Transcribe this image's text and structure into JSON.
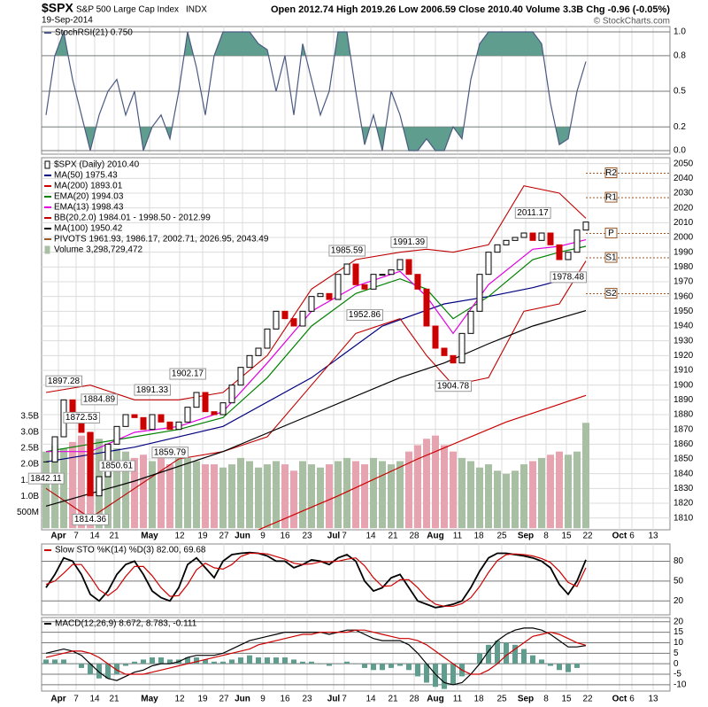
{
  "header": {
    "symbol": "$SPX",
    "name": "S&P 500 Large Cap Index",
    "exchange": "INDX",
    "date": "19-Sep-2014",
    "quote": "Open 2012.74 High 2019.26 Low 2006.59 Close 2010.40 Volume 3.3B Chg -0.96 (-0.05%)",
    "source": "© StockCharts.com"
  },
  "x_axis": {
    "xlim": [
      -0.5,
      70.5
    ],
    "xticks": [
      {
        "value": 1.4,
        "label": "Apr"
      },
      {
        "value": 3.4,
        "label": "7"
      },
      {
        "value": 5.5,
        "label": "14"
      },
      {
        "value": 7.7,
        "label": "21"
      },
      {
        "value": 11.7,
        "label": "May"
      },
      {
        "value": 15.1,
        "label": "12"
      },
      {
        "value": 17.7,
        "label": "19"
      },
      {
        "value": 20.1,
        "label": "27"
      },
      {
        "value": 22.2,
        "label": "Jun"
      },
      {
        "value": 24.5,
        "label": "9"
      },
      {
        "value": 27.0,
        "label": "16"
      },
      {
        "value": 29.5,
        "label": "23"
      },
      {
        "value": 32.5,
        "label": "Jul"
      },
      {
        "value": 33.7,
        "label": "7"
      },
      {
        "value": 36.7,
        "label": "14"
      },
      {
        "value": 39.2,
        "label": "21"
      },
      {
        "value": 41.6,
        "label": "28"
      },
      {
        "value": 44.0,
        "label": "Aug"
      },
      {
        "value": 46.5,
        "label": "11"
      },
      {
        "value": 48.9,
        "label": "18"
      },
      {
        "value": 51.5,
        "label": "25"
      },
      {
        "value": 54.2,
        "label": "Sep"
      },
      {
        "value": 56.5,
        "label": "8"
      },
      {
        "value": 58.8,
        "label": "15"
      },
      {
        "value": 61.2,
        "label": "22"
      },
      {
        "value": 64.8,
        "label": "Oct"
      },
      {
        "value": 66.2,
        "label": "6"
      },
      {
        "value": 68.6,
        "label": "13"
      }
    ]
  },
  "chart_data": [
    {
      "type": "line",
      "title": "StochRSI(21) 0.750",
      "grid": true,
      "ylim": [
        -0.03,
        1.045
      ],
      "yticks": [
        {
          "value": 0,
          "label": "0.0"
        },
        {
          "value": 0.2,
          "label": "0.2"
        },
        {
          "value": 0.5,
          "label": "0.5"
        },
        {
          "value": 0.8,
          "label": "0.8"
        },
        {
          "value": 1,
          "label": "1.0"
        }
      ],
      "shade": [
        0.2,
        0.8
      ],
      "series": [
        {
          "color": "#4b5a82",
          "fill": "#5f9e8f",
          "values": [
            0.3,
            0.8,
            1,
            0.6,
            0.3,
            0,
            0.3,
            0.5,
            0.6,
            0.3,
            0.5,
            0,
            0.2,
            0.3,
            0.1,
            0.5,
            1,
            0.7,
            0.3,
            0.8,
            1,
            1,
            1,
            1,
            0.9,
            0.85,
            0.5,
            0.8,
            0.3,
            0.9,
            0.6,
            0.3,
            0.5,
            1,
            1,
            0.5,
            0.05,
            0.3,
            0,
            0.5,
            0.3,
            0,
            0,
            0.1,
            0,
            0,
            0.2,
            0.1,
            0.6,
            0.9,
            1,
            1,
            1,
            1,
            1,
            1,
            0.9,
            0.4,
            0.05,
            0.1,
            0.5,
            0.75
          ]
        }
      ]
    },
    {
      "type": "candlestick",
      "grid": true,
      "ylim": [
        1802,
        2054
      ],
      "yticks": [
        1810,
        1820,
        1830,
        1840,
        1850,
        1860,
        1870,
        1880,
        1890,
        1900,
        1910,
        1920,
        1930,
        1940,
        1950,
        1960,
        1970,
        1980,
        1990,
        2000,
        2010,
        2020,
        2030,
        2040,
        2050
      ],
      "y2lim": [
        -0.05,
        11.6
      ],
      "y2ticks": [
        {
          "value": 0.5,
          "label": "500M"
        },
        {
          "value": 1,
          "label": "1.0B"
        },
        {
          "value": 1.5,
          "label": "1.5B"
        },
        {
          "value": 2,
          "label": "2.0B"
        },
        {
          "value": 2.5,
          "label": "2.5B"
        },
        {
          "value": 3,
          "label": "3.0B"
        },
        {
          "value": 3.5,
          "label": "3.5B"
        }
      ],
      "series": [
        {
          "name": "$SPX (Daily) 2010.40",
          "color": "#000000",
          "down_color": "#cc0000",
          "values": [
            1848,
            1865,
            1890,
            1880,
            1868,
            1825,
            1838,
            1860,
            1872,
            1880,
            1878,
            1870,
            1880,
            1875,
            1870,
            1875,
            1885,
            1895,
            1882,
            1880,
            1888,
            1900,
            1912,
            1920,
            1925,
            1938,
            1950,
            1945,
            1940,
            1950,
            1960,
            1962,
            1958,
            1975,
            1982,
            1968,
            1965,
            1975,
            1975,
            1978,
            1985,
            1975,
            1965,
            1940,
            1925,
            1920,
            1915,
            1935,
            1950,
            1975,
            1990,
            1995,
            1998,
            2000,
            2003,
            1998,
            2003,
            1995,
            1985,
            1990,
            2005,
            2010.4
          ]
        },
        {
          "type": "line",
          "name": "MA(50) 1975.43",
          "color": "#000080",
          "x": [
            0,
            10,
            20,
            30,
            38,
            45,
            50,
            55,
            61
          ],
          "values": [
            1848,
            1858,
            1872,
            1905,
            1940,
            1955,
            1960,
            1966,
            1975.43
          ]
        },
        {
          "type": "line",
          "name": "MA(200) 1893.01",
          "color": "#cc0000",
          "x": [
            24,
            33,
            42,
            52,
            61
          ],
          "values": [
            1802,
            1825,
            1850,
            1875,
            1893.01
          ]
        },
        {
          "type": "line",
          "name": "EMA(20) 1994.03",
          "color": "#008000",
          "x": [
            0,
            5,
            10,
            15,
            20,
            25,
            30,
            35,
            40,
            43,
            46,
            50,
            55,
            58,
            61
          ],
          "values": [
            1855,
            1860,
            1865,
            1870,
            1878,
            1905,
            1940,
            1962,
            1972,
            1965,
            1945,
            1960,
            1985,
            1990,
            1994.03
          ]
        },
        {
          "type": "line",
          "name": "EMA(13) 1998.43",
          "color": "#e000e0",
          "x": [
            0,
            5,
            10,
            15,
            20,
            25,
            30,
            35,
            40,
            43,
            46,
            50,
            55,
            58,
            61
          ],
          "values": [
            1855,
            1855,
            1868,
            1872,
            1882,
            1915,
            1950,
            1967,
            1977,
            1960,
            1935,
            1968,
            1992,
            1994,
            1998.43
          ]
        },
        {
          "type": "band",
          "name": "BB(20,2.0) 1984.01 - 1998.50 - 2012.99",
          "color": "#c00000",
          "x": [
            0,
            5,
            10,
            15,
            20,
            25,
            30,
            35,
            40,
            43,
            46,
            50,
            54,
            58,
            61
          ],
          "values": [
            1895,
            1900,
            1890,
            1890,
            1895,
            1920,
            1965,
            1985,
            1990,
            1992,
            1990,
            1995,
            2035,
            2030,
            2012.99
          ],
          "lower": [
            1830,
            1810,
            1830,
            1850,
            1855,
            1865,
            1900,
            1935,
            1945,
            1920,
            1900,
            1905,
            1950,
            1955,
            1984.01
          ]
        },
        {
          "type": "line",
          "name": "MA(100) 1950.42",
          "color": "#000000",
          "x": [
            0,
            10,
            20,
            30,
            40,
            45,
            50,
            55,
            61
          ],
          "values": [
            1818,
            1835,
            1855,
            1880,
            1905,
            1915,
            1928,
            1940,
            1950.42
          ]
        },
        {
          "type": "pivot",
          "name": "PIVOTS 1961.93, 1986.17, 2002.71, 2026.95, 2043.49",
          "color": "#9b5a2a",
          "categories": [
            "S2",
            "S1",
            "P",
            "R1",
            "R2"
          ],
          "values": [
            1961.93,
            1986.17,
            2002.71,
            2026.95,
            2043.49
          ]
        },
        {
          "type": "bar",
          "axis": "y2",
          "name": "Volume 3,298,729,472",
          "color": "#a9bfa3",
          "down_color": "#e6a3b0",
          "values": [
            2.4,
            2.6,
            2.5,
            2.7,
            2.9,
            3.0,
            2.8,
            2.6,
            2.5,
            2.4,
            2.2,
            2.3,
            2.1,
            2.2,
            2.0,
            2.3,
            2.2,
            2.1,
            2.0,
            2.0,
            1.9,
            2.0,
            2.2,
            2.1,
            1.9,
            2.0,
            2.1,
            2.0,
            1.8,
            2.1,
            2.0,
            1.9,
            2.0,
            2.1,
            2.2,
            2.1,
            2.0,
            2.2,
            2.1,
            2.0,
            2.1,
            2.4,
            2.6,
            2.8,
            2.9,
            2.6,
            2.4,
            2.2,
            2.1,
            1.9,
            2.0,
            1.8,
            1.7,
            1.8,
            2.0,
            2.1,
            2.2,
            2.3,
            2.4,
            2.3,
            2.4,
            3.3
          ]
        }
      ],
      "annotations": [
        {
          "x": 2,
          "value": 1897.28
        },
        {
          "x": 4,
          "value": 1872.53
        },
        {
          "x": 6,
          "value": 1884.89
        },
        {
          "x": 0,
          "value": 1842.11
        },
        {
          "x": 8,
          "value": 1850.61
        },
        {
          "x": 5,
          "value": 1814.36
        },
        {
          "x": 12,
          "value": 1891.33
        },
        {
          "x": 14,
          "value": 1859.79
        },
        {
          "x": 16,
          "value": 1902.17
        },
        {
          "x": 34,
          "value": 1985.59
        },
        {
          "x": 36,
          "value": 1952.86
        },
        {
          "x": 41,
          "value": 1991.39
        },
        {
          "x": 46,
          "value": 1904.78
        },
        {
          "x": 55,
          "value": 2011.17
        },
        {
          "x": 59,
          "value": 1978.48
        }
      ]
    },
    {
      "type": "line",
      "title": "Slow STO %K(14) %D(3) 82.00, 69.68",
      "grid": true,
      "ylim": [
        -1,
        106
      ],
      "yticks": [
        20,
        50,
        80
      ],
      "series": [
        {
          "color": "#000000",
          "values": [
            40,
            60,
            85,
            80,
            60,
            30,
            20,
            35,
            60,
            75,
            80,
            60,
            35,
            25,
            20,
            40,
            75,
            85,
            70,
            55,
            80,
            90,
            92,
            93,
            92,
            88,
            80,
            80,
            70,
            75,
            82,
            80,
            75,
            85,
            90,
            80,
            50,
            35,
            40,
            55,
            60,
            40,
            20,
            15,
            10,
            12,
            15,
            20,
            40,
            65,
            85,
            92,
            92,
            90,
            88,
            85,
            80,
            70,
            45,
            30,
            50,
            82
          ]
        },
        {
          "color": "#cc0000",
          "values": [
            45,
            50,
            62,
            75,
            75,
            57,
            37,
            28,
            38,
            57,
            72,
            72,
            58,
            40,
            27,
            28,
            45,
            67,
            77,
            70,
            68,
            75,
            87,
            92,
            92,
            91,
            87,
            83,
            77,
            75,
            76,
            79,
            79,
            80,
            83,
            85,
            73,
            55,
            42,
            43,
            52,
            52,
            40,
            25,
            15,
            12,
            12,
            16,
            25,
            42,
            63,
            81,
            90,
            91,
            90,
            88,
            84,
            78,
            65,
            48,
            42,
            70
          ]
        }
      ]
    },
    {
      "type": "line",
      "title": "MACD(12,26,9) 8.672, 8.783, -0.111",
      "grid": true,
      "ylim": [
        -13,
        22
      ],
      "yticks": [
        -10,
        -5,
        0,
        5,
        10,
        15,
        20
      ],
      "series": [
        {
          "type": "bar",
          "color": "#5f9e8f",
          "values": [
            2,
            2,
            2,
            0,
            -2,
            -5,
            -7,
            -7,
            -5,
            -1,
            1,
            2,
            3,
            3,
            2,
            2,
            3,
            3,
            2,
            1,
            1,
            2,
            3,
            4,
            3,
            3,
            3,
            3,
            2,
            1,
            1,
            0,
            -1,
            0,
            1,
            0,
            -2,
            -3,
            -3,
            -2,
            -1,
            -3,
            -6,
            -9,
            -11,
            -12,
            -10,
            -6,
            0,
            5,
            9,
            11,
            10,
            9,
            7,
            4,
            2,
            -1,
            -3,
            -4,
            -2,
            -0.111
          ]
        },
        {
          "color": "#000000",
          "values": [
            5,
            6,
            7,
            6,
            4,
            0,
            -4,
            -7,
            -8,
            -6,
            -4,
            -3,
            -1,
            0,
            0,
            1,
            3,
            4,
            4,
            4,
            5,
            7,
            9,
            11,
            12,
            13,
            14,
            15,
            15,
            15,
            15,
            15,
            14,
            15,
            16,
            16,
            14,
            12,
            11,
            11,
            11,
            9,
            5,
            0,
            -5,
            -9,
            -10,
            -9,
            -5,
            0,
            6,
            11,
            14,
            16,
            17,
            17,
            16,
            14,
            11,
            8,
            8,
            8.672
          ]
        },
        {
          "color": "#cc0000",
          "values": [
            3,
            4,
            5,
            6,
            6,
            5,
            3,
            0,
            -3,
            -5,
            -5,
            -5,
            -4,
            -3,
            -2,
            -1,
            0,
            1,
            2,
            3,
            4,
            5,
            6,
            7,
            9,
            10,
            11,
            12,
            13,
            14,
            14,
            15,
            15,
            15,
            15,
            16,
            16,
            15,
            14,
            13,
            12,
            12,
            11,
            9,
            6,
            3,
            0,
            -3,
            -5,
            -5,
            -3,
            0,
            4,
            7,
            10,
            13,
            14,
            15,
            14,
            12,
            10,
            8.783
          ]
        }
      ]
    }
  ]
}
